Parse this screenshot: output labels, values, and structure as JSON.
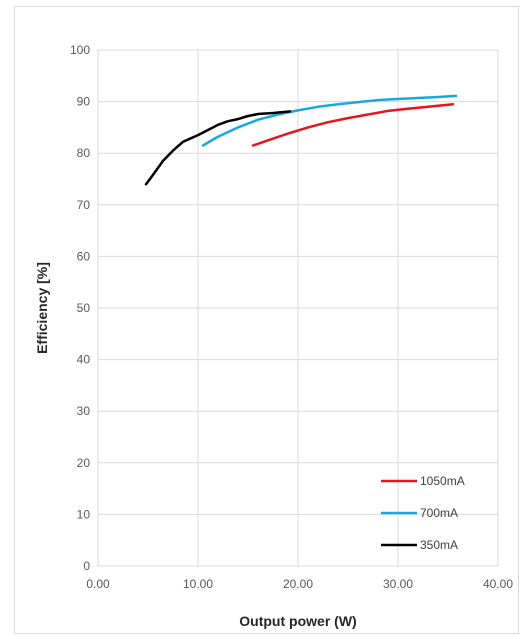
{
  "chart_data": {
    "type": "line",
    "xlabel": "Output power (W)",
    "ylabel": "Efficiency [%]",
    "xlim": [
      0,
      40
    ],
    "ylim": [
      0,
      100
    ],
    "x_ticks": [
      "0.00",
      "10.00",
      "20.00",
      "30.00",
      "40.00"
    ],
    "y_ticks": [
      "0",
      "10",
      "20",
      "30",
      "40",
      "50",
      "60",
      "70",
      "80",
      "90",
      "100"
    ],
    "grid": true,
    "legend_position": "bottom-right",
    "series": [
      {
        "name": "1050mA",
        "color": "#e8141b",
        "points": [
          [
            15.5,
            81.5
          ],
          [
            17,
            82.5
          ],
          [
            19,
            83.8
          ],
          [
            21,
            85
          ],
          [
            23,
            86
          ],
          [
            25,
            86.8
          ],
          [
            27,
            87.5
          ],
          [
            29,
            88.2
          ],
          [
            31,
            88.6
          ],
          [
            33,
            89
          ],
          [
            35.5,
            89.5
          ]
        ]
      },
      {
        "name": "700mA",
        "color": "#1aa7e0",
        "points": [
          [
            10.5,
            81.5
          ],
          [
            12,
            83.2
          ],
          [
            14,
            85
          ],
          [
            16,
            86.5
          ],
          [
            18,
            87.5
          ],
          [
            20,
            88.3
          ],
          [
            22,
            89
          ],
          [
            24,
            89.5
          ],
          [
            26,
            89.9
          ],
          [
            28,
            90.3
          ],
          [
            30,
            90.5
          ],
          [
            32,
            90.7
          ],
          [
            34,
            90.9
          ],
          [
            35.8,
            91.1
          ]
        ]
      },
      {
        "name": "350mA",
        "color": "#000000",
        "points": [
          [
            4.8,
            74
          ],
          [
            5.5,
            75.8
          ],
          [
            6.5,
            78.5
          ],
          [
            7.5,
            80.5
          ],
          [
            8.5,
            82.2
          ],
          [
            10,
            83.5
          ],
          [
            11,
            84.5
          ],
          [
            12,
            85.5
          ],
          [
            13,
            86.2
          ],
          [
            14,
            86.6
          ],
          [
            15,
            87.2
          ],
          [
            16,
            87.6
          ],
          [
            17.5,
            87.8
          ],
          [
            19.2,
            88.1
          ]
        ]
      }
    ]
  }
}
